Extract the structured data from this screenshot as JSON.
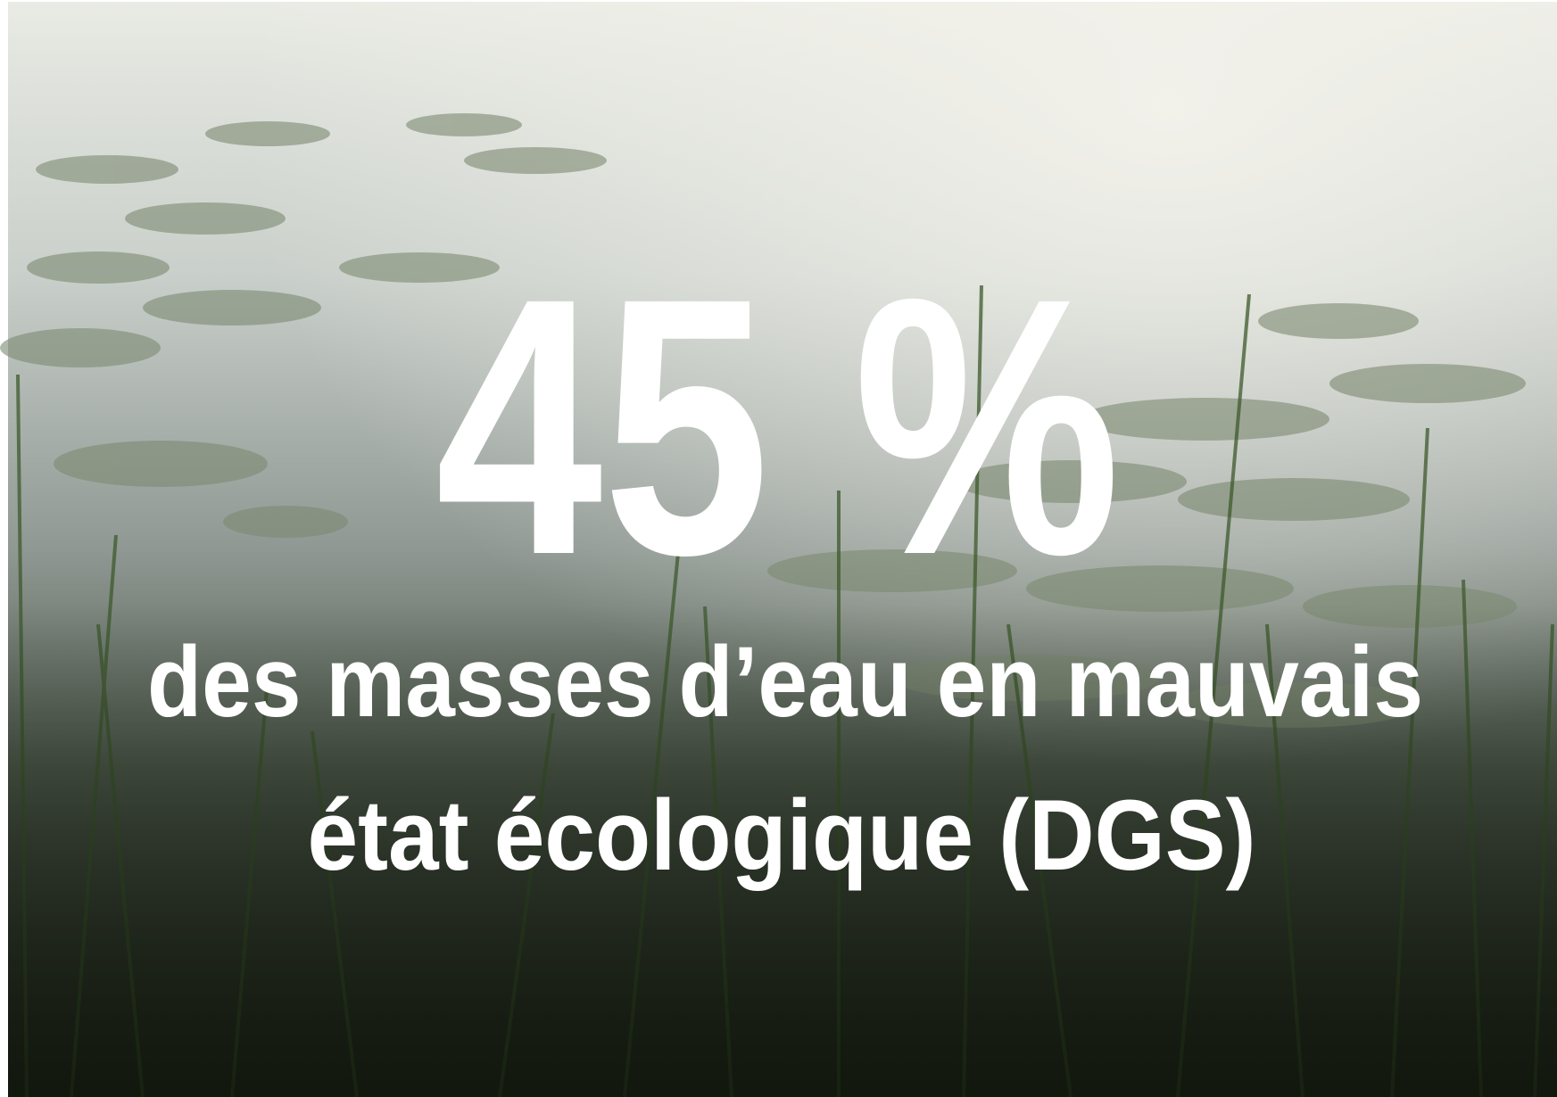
{
  "headline": "45 %",
  "caption_lines": [
    "des masses d’eau en mauvais",
    "état écologique (DGS)"
  ]
}
